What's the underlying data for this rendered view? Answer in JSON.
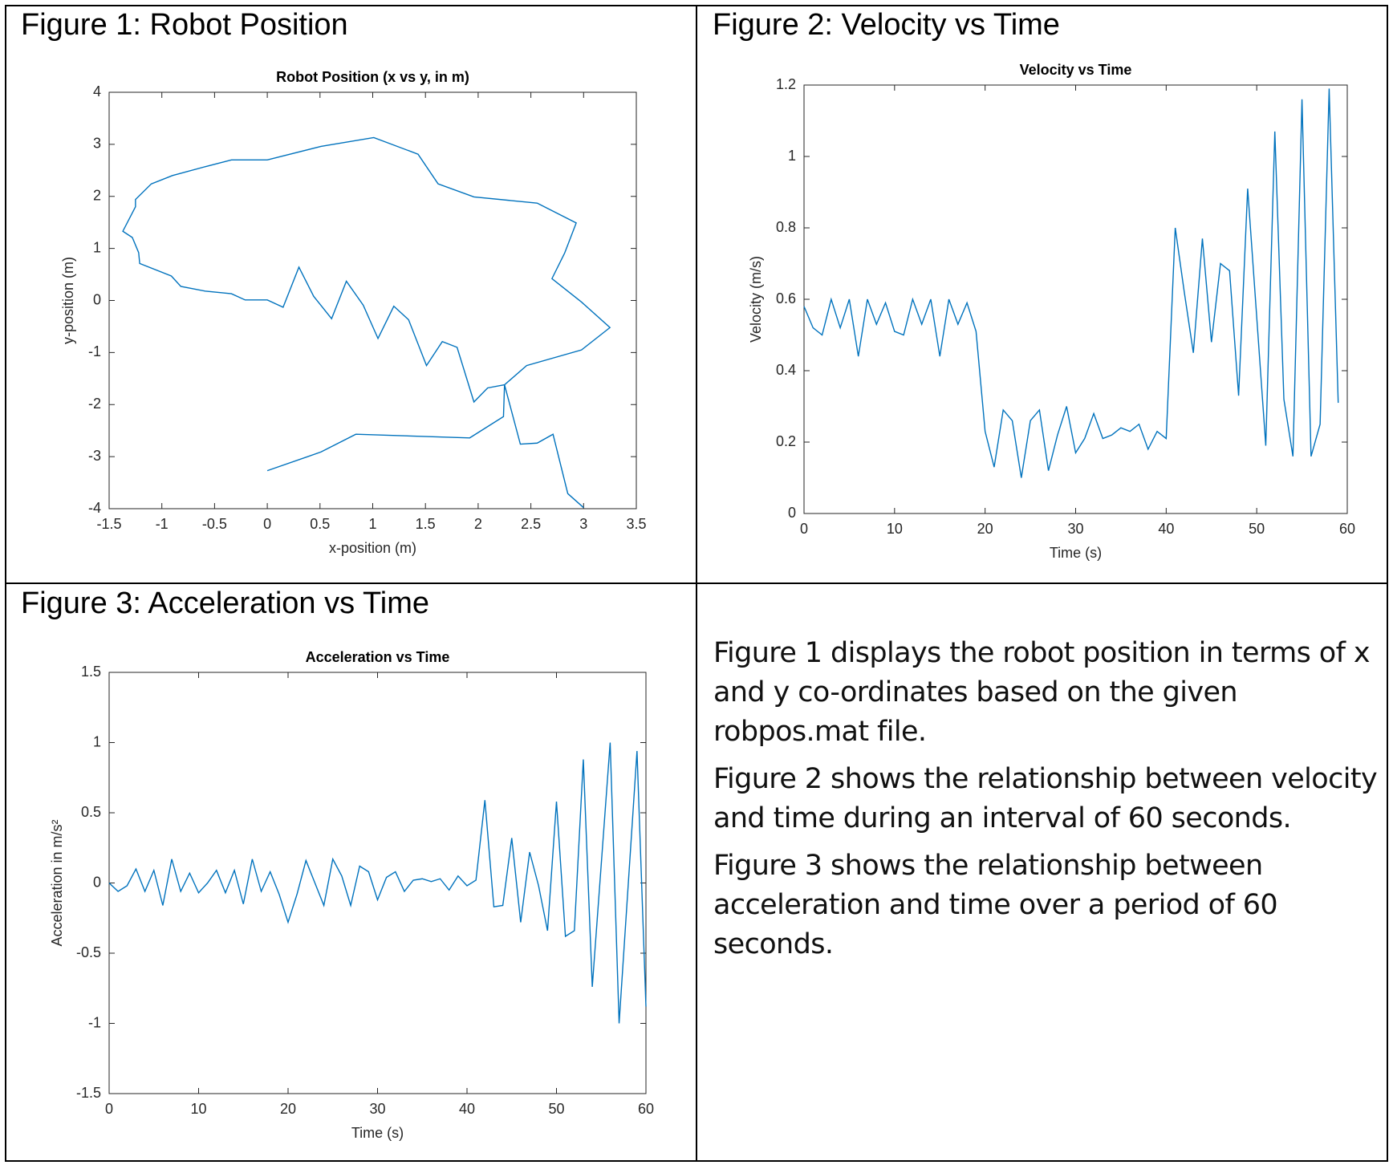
{
  "captions": [
    "Figure 1: Robot Position",
    "Figure 2: Velocity vs Time",
    "Figure 3: Acceleration vs Time"
  ],
  "paragraphs": [
    "Figure 1 displays the robot position in terms of x and y co-ordinates based on the given robpos.mat file.",
    "Figure 2 shows the relationship between velocity and time during an interval of 60 seconds.",
    "Figure 3 shows the relationship between acceleration and time over a period of 60 seconds."
  ],
  "chart_data": [
    {
      "type": "line",
      "title": "Robot Position (x vs y, in m)",
      "xlabel": "x-position (m)",
      "ylabel": "y-position (m)",
      "xlim": [
        -1.5,
        3.5
      ],
      "ylim": [
        -4,
        4
      ],
      "xticks": [
        -1.5,
        -1,
        -0.5,
        0,
        0.5,
        1,
        1.5,
        2,
        2.5,
        3,
        3.5
      ],
      "yticks": [
        -4,
        -3,
        -2,
        -1,
        0,
        1,
        2,
        3,
        4
      ],
      "x": [
        0,
        0.51,
        0.84,
        1.92,
        2.24,
        2.25,
        2.46,
        2.98,
        3.25,
        2.98,
        2.7,
        2.82,
        2.93,
        2.56,
        1.96,
        1.62,
        1.43,
        1.01,
        0.51,
        0,
        -0.34,
        -0.59,
        -0.9,
        -1.1,
        -1.25,
        -1.25,
        -1.37,
        -1.28,
        -1.22,
        -1.21,
        -0.91,
        -0.82,
        -0.59,
        -0.34,
        -0.21,
        0,
        0.15,
        0.3,
        0.44,
        0.61,
        0.75,
        0.91,
        1.05,
        1.2,
        1.34,
        1.51,
        1.66,
        1.8,
        1.96,
        2.09,
        2.25,
        2.4,
        2.56,
        2.71,
        2.85,
        3.0
      ],
      "series": [
        {
          "color": "#0072bd",
          "values": [
            -3.27,
            -2.91,
            -2.57,
            -2.64,
            -2.23,
            -1.62,
            -1.25,
            -0.95,
            -0.52,
            -0.03,
            0.42,
            0.91,
            1.49,
            1.87,
            1.99,
            2.24,
            2.81,
            3.13,
            2.96,
            2.7,
            2.7,
            2.57,
            2.4,
            2.24,
            1.94,
            1.8,
            1.33,
            1.21,
            0.92,
            0.71,
            0.47,
            0.27,
            0.18,
            0.13,
            0.01,
            0.01,
            -0.13,
            0.64,
            0.08,
            -0.35,
            0.37,
            -0.09,
            -0.73,
            -0.11,
            -0.37,
            -1.25,
            -0.79,
            -0.9,
            -1.95,
            -1.68,
            -1.62,
            -2.76,
            -2.74,
            -2.57,
            -3.71,
            -3.98
          ]
        }
      ]
    },
    {
      "type": "line",
      "title": "Velocity vs Time",
      "xlabel": "Time (s)",
      "ylabel": "Velocity (m/s)",
      "xlim": [
        0,
        60
      ],
      "ylim": [
        0,
        1.2
      ],
      "xticks": [
        0,
        10,
        20,
        30,
        40,
        50,
        60
      ],
      "yticks": [
        0,
        0.2,
        0.4,
        0.6,
        0.8,
        1,
        1.2
      ],
      "x": [
        0,
        1,
        2,
        3,
        4,
        5,
        6,
        7,
        8,
        9,
        10,
        11,
        12,
        13,
        14,
        15,
        16,
        17,
        18,
        19,
        20,
        21,
        22,
        23,
        24,
        25,
        26,
        27,
        28,
        29,
        30,
        31,
        32,
        33,
        34,
        35,
        36,
        37,
        38,
        39,
        40,
        41,
        42,
        43,
        44,
        45,
        46,
        47,
        48,
        49,
        50,
        51,
        52,
        53,
        54,
        55,
        56,
        57,
        58,
        59
      ],
      "series": [
        {
          "color": "#0072bd",
          "values": [
            0.58,
            0.52,
            0.5,
            0.6,
            0.52,
            0.6,
            0.44,
            0.6,
            0.53,
            0.59,
            0.51,
            0.5,
            0.6,
            0.53,
            0.6,
            0.44,
            0.6,
            0.53,
            0.59,
            0.51,
            0.23,
            0.13,
            0.29,
            0.26,
            0.1,
            0.26,
            0.29,
            0.12,
            0.22,
            0.3,
            0.17,
            0.21,
            0.28,
            0.21,
            0.22,
            0.24,
            0.23,
            0.25,
            0.18,
            0.23,
            0.21,
            0.8,
            0.62,
            0.45,
            0.77,
            0.48,
            0.7,
            0.68,
            0.33,
            0.91,
            0.55,
            0.19,
            1.07,
            0.32,
            0.16,
            1.16,
            0.16,
            0.25,
            1.19,
            0.31
          ]
        }
      ]
    },
    {
      "type": "line",
      "title": "Acceleration vs Time",
      "xlabel": "Time (s)",
      "ylabel": "Acceleration in m/s²",
      "xlim": [
        0,
        60
      ],
      "ylim": [
        -1.5,
        1.5
      ],
      "xticks": [
        0,
        10,
        20,
        30,
        40,
        50,
        60
      ],
      "yticks": [
        -1.5,
        -1,
        -0.5,
        0,
        0.5,
        1,
        1.5
      ],
      "x": [
        0,
        1,
        2,
        3,
        4,
        5,
        6,
        7,
        8,
        9,
        10,
        11,
        12,
        13,
        14,
        15,
        16,
        17,
        18,
        19,
        20,
        21,
        22,
        23,
        24,
        25,
        26,
        27,
        28,
        29,
        30,
        31,
        32,
        33,
        34,
        35,
        36,
        37,
        38,
        39,
        40,
        41,
        42,
        43,
        44,
        45,
        46,
        47,
        48,
        49,
        50,
        51,
        52,
        53,
        54,
        55,
        56,
        57,
        58,
        59,
        60
      ],
      "series": [
        {
          "color": "#0072bd",
          "values": [
            0,
            -0.06,
            -0.02,
            0.1,
            -0.06,
            0.09,
            -0.16,
            0.17,
            -0.06,
            0.07,
            -0.07,
            0,
            0.09,
            -0.07,
            0.09,
            -0.15,
            0.17,
            -0.06,
            0.08,
            -0.08,
            -0.28,
            -0.08,
            0.16,
            0,
            -0.16,
            0.17,
            0.05,
            -0.16,
            0.12,
            0.08,
            -0.12,
            0.04,
            0.08,
            -0.06,
            0.02,
            0.03,
            0.01,
            0.03,
            -0.05,
            0.05,
            -0.02,
            0.02,
            0.59,
            -0.17,
            -0.16,
            0.32,
            -0.28,
            0.22,
            -0.02,
            -0.34,
            0.58,
            -0.38,
            -0.34,
            0.88,
            -0.74,
            0.13,
            1.0,
            -1.0,
            -0.03,
            0.94,
            -0.88
          ]
        }
      ]
    }
  ]
}
